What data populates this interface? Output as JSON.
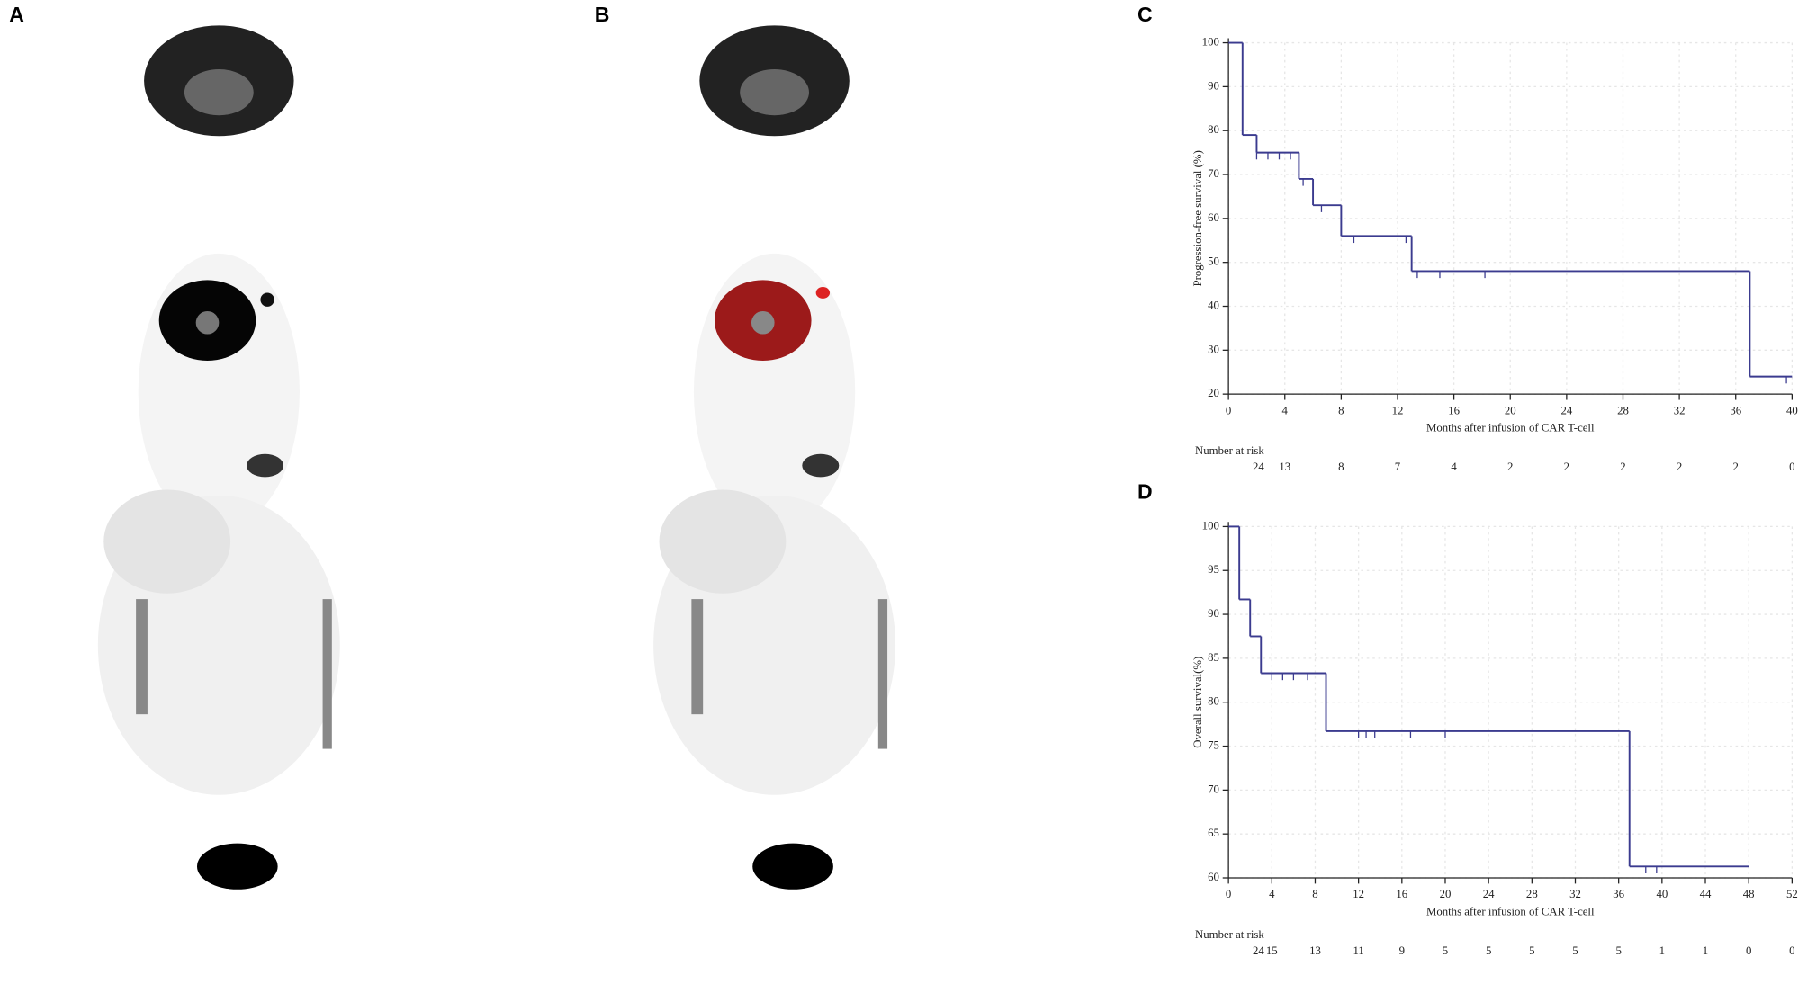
{
  "panel_labels": [
    "A",
    "B",
    "C",
    "D"
  ],
  "chart_data": [
    {
      "type": "step",
      "y_label": "Progression-free survival (%)",
      "x_label": "Months after infusion of CAR T-cell",
      "x": [
        0,
        1,
        2,
        5,
        6,
        8,
        13,
        37,
        40
      ],
      "values": [
        100,
        79,
        75,
        69,
        63,
        56,
        48,
        24,
        24
      ],
      "color": "#3b3b8f",
      "censored_x": [
        2,
        2.8,
        3.6,
        4.4,
        5.3,
        6.6,
        8.9,
        12.6,
        13.4,
        15,
        18.2,
        39.6
      ],
      "censored_values": [
        75,
        75,
        75,
        75,
        69,
        63,
        56,
        56,
        48,
        48,
        48,
        24
      ],
      "xlim": [
        0,
        40
      ],
      "xticks": [
        0,
        4,
        8,
        12,
        16,
        20,
        24,
        28,
        32,
        36,
        40
      ],
      "ylim": [
        20,
        100
      ],
      "yticks": [
        20,
        30,
        40,
        50,
        60,
        70,
        80,
        90,
        100
      ],
      "grid": true,
      "risk_label": "Number at risk",
      "at_risk": [
        24,
        13,
        8,
        7,
        4,
        2,
        2,
        2,
        2,
        2,
        0
      ]
    },
    {
      "type": "step",
      "y_label": "Overall survival(%)",
      "x_label": "Months after infusion of CAR T-cell",
      "x": [
        0,
        1,
        2,
        3,
        9,
        37,
        48
      ],
      "values": [
        100,
        91.7,
        87.5,
        83.3,
        76.7,
        61.3,
        61.3
      ],
      "color": "#3b3b8f",
      "censored_x": [
        4,
        5,
        6,
        7.3,
        12,
        12.7,
        13.5,
        16.8,
        20,
        38.5,
        39.5
      ],
      "censored_values": [
        83.3,
        83.3,
        83.3,
        83.3,
        76.7,
        76.7,
        76.7,
        76.7,
        76.7,
        61.3,
        61.3
      ],
      "xlim": [
        0,
        52
      ],
      "xticks": [
        0,
        4,
        8,
        12,
        16,
        20,
        24,
        28,
        32,
        36,
        40,
        44,
        48,
        52
      ],
      "ylim": [
        60,
        100
      ],
      "yticks": [
        60,
        65,
        70,
        75,
        80,
        85,
        90,
        95,
        100
      ],
      "grid": true,
      "risk_label": "Number at risk",
      "at_risk": [
        24,
        15,
        13,
        11,
        9,
        5,
        5,
        5,
        5,
        5,
        1,
        1,
        0,
        0
      ]
    }
  ]
}
